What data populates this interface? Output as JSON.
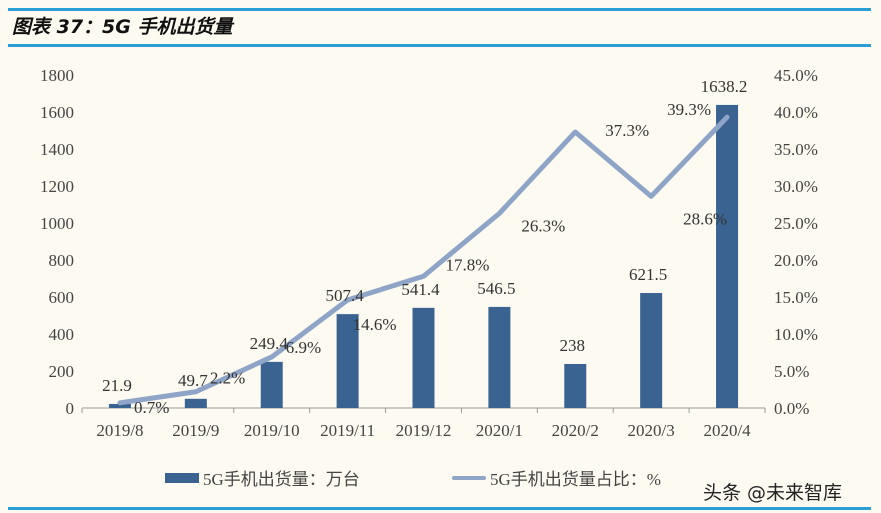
{
  "title": "图表 37：5G 手机出货量",
  "watermark": "头条 @未来智库",
  "colors": {
    "bar": "#3a6391",
    "line": "#8fa5c8",
    "rule": "#2a9fd6"
  },
  "chart_data": {
    "type": "bar+line",
    "categories": [
      "2019/8",
      "2019/9",
      "2019/10",
      "2019/11",
      "2019/12",
      "2020/1",
      "2020/2",
      "2020/3",
      "2020/4"
    ],
    "series": [
      {
        "name": "5G手机出货量：万台",
        "type": "bar",
        "axis": "left",
        "values": [
          21.9,
          49.7,
          249.4,
          507.4,
          541.4,
          546.5,
          238,
          621.5,
          1638.2
        ],
        "labels": [
          "21.9",
          "49.7",
          "249.4",
          "507.4",
          "541.4",
          "546.5",
          "238",
          "621.5",
          "1638.2"
        ]
      },
      {
        "name": "5G手机出货量占比：%",
        "type": "line",
        "axis": "right",
        "values": [
          0.7,
          2.2,
          6.9,
          14.6,
          17.8,
          26.3,
          37.3,
          28.6,
          39.3
        ],
        "labels": [
          "0.7%",
          "2.2%",
          "6.9%",
          "14.6%",
          "17.8%",
          "26.3%",
          "37.3%",
          "28.6%",
          "39.3%"
        ]
      }
    ],
    "ylim_left": [
      0,
      1800
    ],
    "yticks_left": [
      "0",
      "200",
      "400",
      "600",
      "800",
      "1000",
      "1200",
      "1400",
      "1600",
      "1800"
    ],
    "ylim_right": [
      0,
      45
    ],
    "yticks_right": [
      "0.0%",
      "5.0%",
      "10.0%",
      "15.0%",
      "20.0%",
      "25.0%",
      "30.0%",
      "35.0%",
      "40.0%",
      "45.0%"
    ],
    "grid": false,
    "legend": "bottom"
  }
}
